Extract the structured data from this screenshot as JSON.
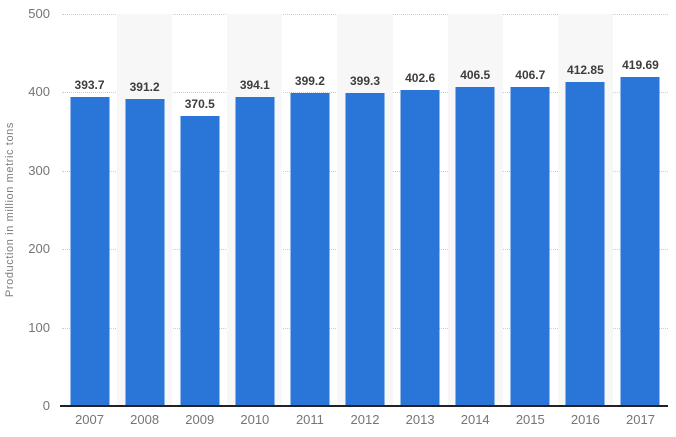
{
  "chart_data": {
    "type": "bar",
    "title": "",
    "xlabel": "",
    "ylabel": "Production in million metric tons",
    "categories": [
      "2007",
      "2008",
      "2009",
      "2010",
      "2011",
      "2012",
      "2013",
      "2014",
      "2015",
      "2016",
      "2017"
    ],
    "values": [
      393.7,
      391.2,
      370.5,
      394.1,
      399.2,
      399.3,
      402.6,
      406.5,
      406.7,
      412.85,
      419.69
    ],
    "value_labels": [
      "393.7",
      "391.2",
      "370.5",
      "394.1",
      "399.2",
      "399.3",
      "402.6",
      "406.5",
      "406.7",
      "412.85",
      "419.69"
    ],
    "ylim": [
      0,
      500
    ],
    "yticks": [
      0,
      100,
      200,
      300,
      400,
      500
    ],
    "grid": "horizontal-dotted",
    "legend": "none",
    "banded_background": "alternating vertical bands behind even-year columns",
    "colors": {
      "bar": "#2a76d8",
      "band": "#f7f7f7",
      "grid": "#cccccc",
      "axis": "#222222",
      "value_label": "#3d3d3d",
      "tick_label": "#757575"
    }
  }
}
